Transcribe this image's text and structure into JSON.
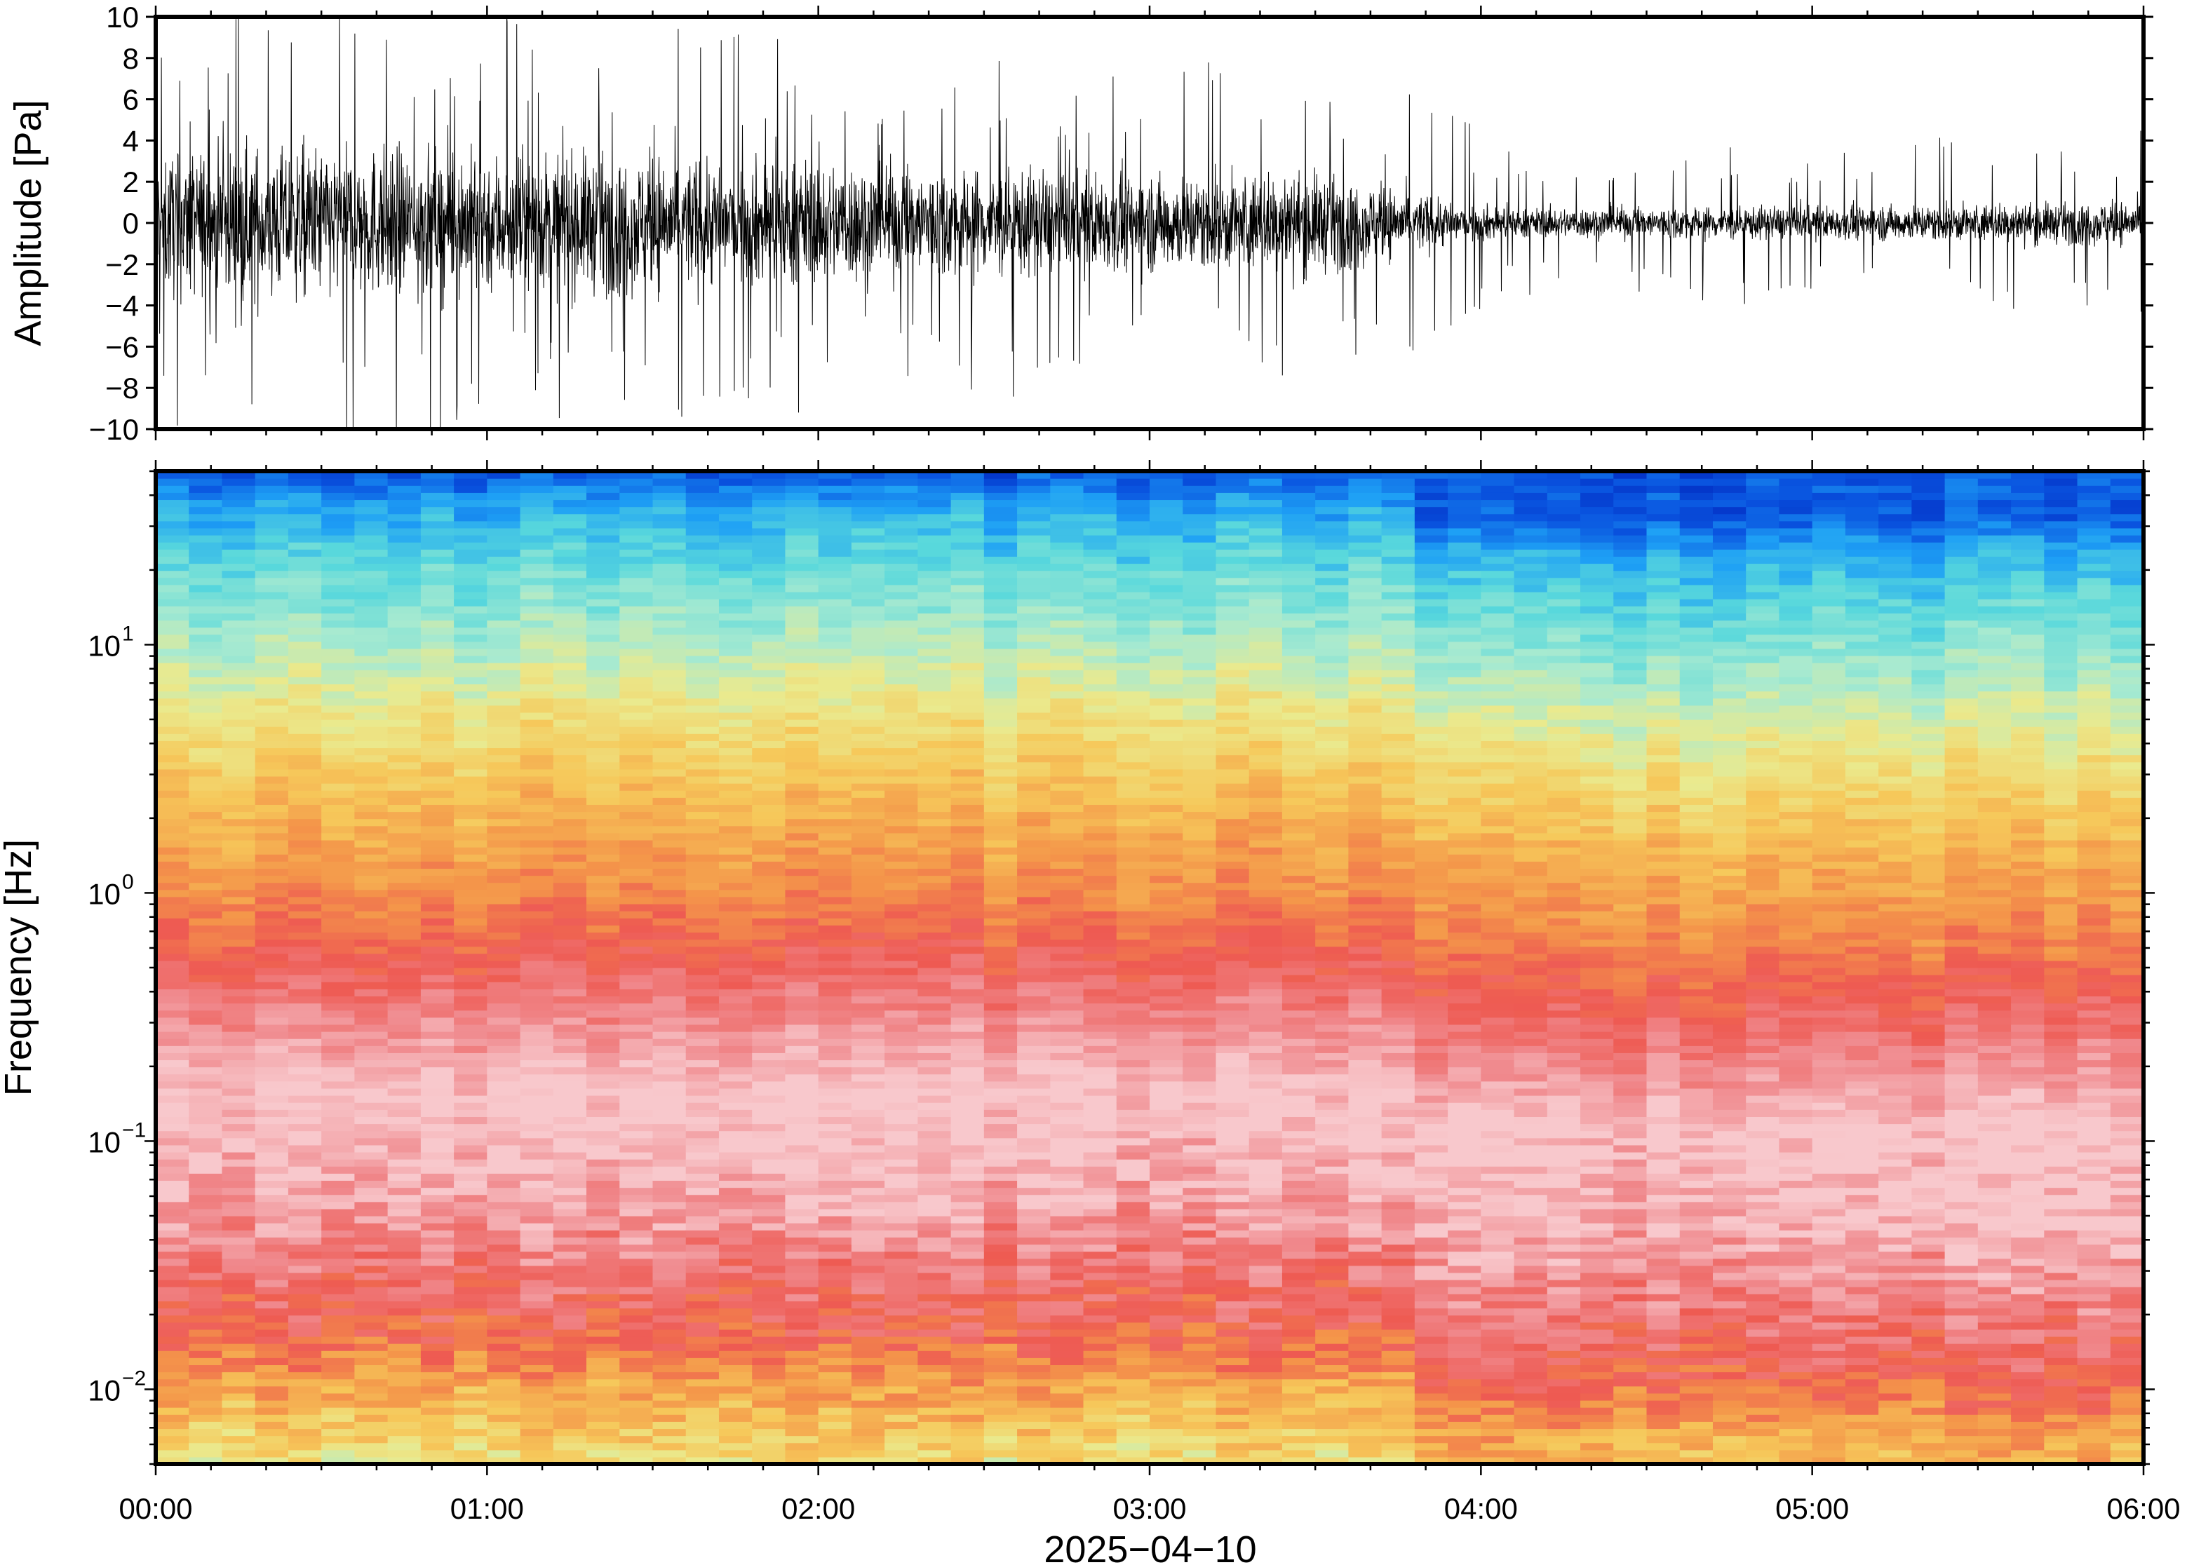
{
  "chart_data": [
    {
      "type": "line",
      "name": "waveform",
      "ylabel": "Amplitude [Pa]",
      "ylim": [
        -10,
        10
      ],
      "yticks": [
        -10,
        -8,
        -6,
        -4,
        -2,
        0,
        2,
        4,
        6,
        8,
        10
      ],
      "ytick_labels": [
        "−10",
        "−8",
        "−6",
        "−4",
        "−2",
        "0",
        "2",
        "4",
        "6",
        "8",
        "10"
      ],
      "xlim_hours": [
        0,
        6
      ],
      "series_color": "#000000",
      "envelope": {
        "x_hours": [
          0,
          0.5,
          1,
          1.5,
          2,
          2.5,
          3,
          3.5,
          3.9,
          4.1,
          4.5,
          5,
          5.5,
          6
        ],
        "core_abs_pa": [
          3.0,
          3.2,
          3.0,
          2.8,
          2.6,
          2.3,
          2.0,
          2.1,
          1.0,
          0.6,
          0.7,
          0.7,
          0.8,
          0.9
        ],
        "spike_abs_pa": [
          8.5,
          9.5,
          9.0,
          8.5,
          8.0,
          7.5,
          7.5,
          7.0,
          5.0,
          3.0,
          3.5,
          3.5,
          4.0,
          4.0
        ]
      }
    },
    {
      "type": "heatmap",
      "name": "spectrogram",
      "ylabel": "Frequency [Hz]",
      "yscale": "log",
      "ylim_hz": [
        0.005,
        50
      ],
      "ytick_labels": [
        {
          "value": 0.01,
          "base": "10",
          "exp": "−2"
        },
        {
          "value": 0.1,
          "base": "10",
          "exp": "−1"
        },
        {
          "value": 1,
          "base": "10",
          "exp": "0"
        },
        {
          "value": 10,
          "base": "10",
          "exp": "1"
        }
      ],
      "xlabel": "2025−04−10",
      "xlim_hours": [
        0,
        6
      ],
      "xtick_labels": [
        "00:00",
        "01:00",
        "02:00",
        "03:00",
        "04:00",
        "05:00",
        "06:00"
      ],
      "colormap": [
        "#0022bb",
        "#0a55e0",
        "#1ea0f5",
        "#58d8dc",
        "#a8ead0",
        "#eaea8e",
        "#f6c85a",
        "#f4964a",
        "#ee5a52",
        "#f08a8e",
        "#f8c8cc"
      ],
      "level_profile": {
        "log10_freq": [
          -2.3,
          -2.0,
          -1.75,
          -1.6,
          -1.4,
          -1.1,
          -0.8,
          -0.6,
          -0.3,
          0.0,
          0.4,
          0.7,
          1.0,
          1.3,
          1.55,
          1.7
        ],
        "color_index": [
          5.3,
          6.7,
          8.0,
          8.3,
          9.0,
          9.8,
          10.0,
          9.3,
          8.2,
          7.2,
          6.2,
          5.3,
          4.2,
          3.2,
          2.2,
          1.0
        ]
      }
    }
  ]
}
